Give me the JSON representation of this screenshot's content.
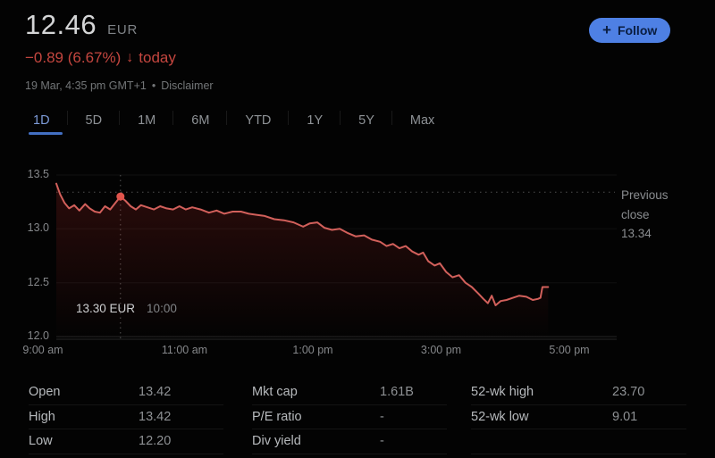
{
  "header": {
    "price": "12.46",
    "currency": "EUR",
    "change": "−0.89 (6.67%)",
    "change_arrow": "↓",
    "change_suffix": "today",
    "timestamp": "19 Mar, 4:35 pm GMT+1",
    "separator": "•",
    "disclaimer": "Disclaimer",
    "follow_button": {
      "icon": "+",
      "label": "Follow"
    }
  },
  "tabs": {
    "items": [
      {
        "label": "1D",
        "active": true
      },
      {
        "label": "5D",
        "active": false
      },
      {
        "label": "1M",
        "active": false
      },
      {
        "label": "6M",
        "active": false
      },
      {
        "label": "YTD",
        "active": false
      },
      {
        "label": "1Y",
        "active": false
      },
      {
        "label": "5Y",
        "active": false
      },
      {
        "label": "Max",
        "active": false
      }
    ]
  },
  "chart_data": {
    "type": "line",
    "title": "Intraday price (1D)",
    "x_axis": {
      "labels": [
        "9:00 am",
        "11:00 am",
        "1:00 pm",
        "3:00 pm",
        "5:00 pm"
      ],
      "label_hours": [
        0,
        2,
        4,
        6,
        8
      ],
      "range_hours": [
        0,
        8.7
      ],
      "unit": "hours since 9:00 am"
    },
    "y_axis": {
      "tick_labels": [
        "13.5",
        "13.0",
        "12.5",
        "12.0"
      ],
      "tick_values": [
        13.5,
        13.0,
        12.5,
        12.0
      ],
      "range": [
        12.0,
        13.5
      ]
    },
    "previous_close": {
      "value": 13.34,
      "label_lines": [
        "Previous",
        "close",
        "13.34"
      ]
    },
    "crosshair": {
      "time_hours": 1.0,
      "value": 13.3,
      "tooltip_price": "13.30 EUR",
      "tooltip_time": "10:00"
    },
    "series": [
      {
        "name": "price",
        "color": "#d2605b",
        "points": [
          [
            0.0,
            13.42
          ],
          [
            0.06,
            13.32
          ],
          [
            0.13,
            13.24
          ],
          [
            0.2,
            13.19
          ],
          [
            0.28,
            13.22
          ],
          [
            0.36,
            13.17
          ],
          [
            0.45,
            13.23
          ],
          [
            0.52,
            13.19
          ],
          [
            0.6,
            13.16
          ],
          [
            0.68,
            13.15
          ],
          [
            0.76,
            13.21
          ],
          [
            0.84,
            13.18
          ],
          [
            0.92,
            13.24
          ],
          [
            1.0,
            13.3
          ],
          [
            1.08,
            13.26
          ],
          [
            1.16,
            13.21
          ],
          [
            1.24,
            13.18
          ],
          [
            1.32,
            13.22
          ],
          [
            1.42,
            13.2
          ],
          [
            1.52,
            13.18
          ],
          [
            1.62,
            13.21
          ],
          [
            1.72,
            13.19
          ],
          [
            1.82,
            13.18
          ],
          [
            1.92,
            13.21
          ],
          [
            2.02,
            13.18
          ],
          [
            2.12,
            13.2
          ],
          [
            2.25,
            13.18
          ],
          [
            2.38,
            13.15
          ],
          [
            2.5,
            13.17
          ],
          [
            2.62,
            13.14
          ],
          [
            2.75,
            13.16
          ],
          [
            2.88,
            13.16
          ],
          [
            3.0,
            13.14
          ],
          [
            3.12,
            13.13
          ],
          [
            3.25,
            13.12
          ],
          [
            3.4,
            13.09
          ],
          [
            3.55,
            13.08
          ],
          [
            3.7,
            13.06
          ],
          [
            3.85,
            13.02
          ],
          [
            3.95,
            13.05
          ],
          [
            4.07,
            13.06
          ],
          [
            4.18,
            13.01
          ],
          [
            4.3,
            12.99
          ],
          [
            4.42,
            13.0
          ],
          [
            4.55,
            12.96
          ],
          [
            4.67,
            12.93
          ],
          [
            4.8,
            12.94
          ],
          [
            4.92,
            12.9
          ],
          [
            5.05,
            12.88
          ],
          [
            5.15,
            12.84
          ],
          [
            5.25,
            12.86
          ],
          [
            5.35,
            12.82
          ],
          [
            5.45,
            12.84
          ],
          [
            5.55,
            12.79
          ],
          [
            5.65,
            12.76
          ],
          [
            5.72,
            12.78
          ],
          [
            5.8,
            12.7
          ],
          [
            5.9,
            12.66
          ],
          [
            5.98,
            12.68
          ],
          [
            6.08,
            12.6
          ],
          [
            6.18,
            12.55
          ],
          [
            6.28,
            12.57
          ],
          [
            6.38,
            12.5
          ],
          [
            6.48,
            12.46
          ],
          [
            6.58,
            12.4
          ],
          [
            6.66,
            12.35
          ],
          [
            6.73,
            12.31
          ],
          [
            6.79,
            12.38
          ],
          [
            6.85,
            12.29
          ],
          [
            6.93,
            12.33
          ],
          [
            7.02,
            12.34
          ],
          [
            7.12,
            12.36
          ],
          [
            7.22,
            12.38
          ],
          [
            7.33,
            12.37
          ],
          [
            7.43,
            12.34
          ],
          [
            7.51,
            12.35
          ],
          [
            7.55,
            12.36
          ],
          [
            7.58,
            12.46
          ],
          [
            7.67,
            12.46
          ]
        ]
      }
    ]
  },
  "stats": {
    "columns": [
      {
        "rows": [
          {
            "label": "Open",
            "value": "13.42"
          },
          {
            "label": "High",
            "value": "13.42"
          },
          {
            "label": "Low",
            "value": "12.20"
          }
        ]
      },
      {
        "rows": [
          {
            "label": "Mkt cap",
            "value": "1.61B"
          },
          {
            "label": "P/E ratio",
            "value": "-"
          },
          {
            "label": "Div yield",
            "value": "-"
          }
        ]
      },
      {
        "rows": [
          {
            "label": "52-wk high",
            "value": "23.70"
          },
          {
            "label": "52-wk low",
            "value": "9.01"
          },
          {
            "label": "",
            "value": ""
          }
        ]
      }
    ]
  },
  "colors": {
    "background": "#030303",
    "price_text": "#d4d5d6",
    "negative_red": "#c4463f",
    "chart_line_red": "#d2605b",
    "chart_dot_red": "#e0544c",
    "tab_active_blue": "#7d9bd8",
    "tab_underline_blue": "#4370c4",
    "follow_button_blue": "#4e80e4",
    "follow_button_text": "#0a1d40",
    "muted_gray": "#85878a"
  }
}
